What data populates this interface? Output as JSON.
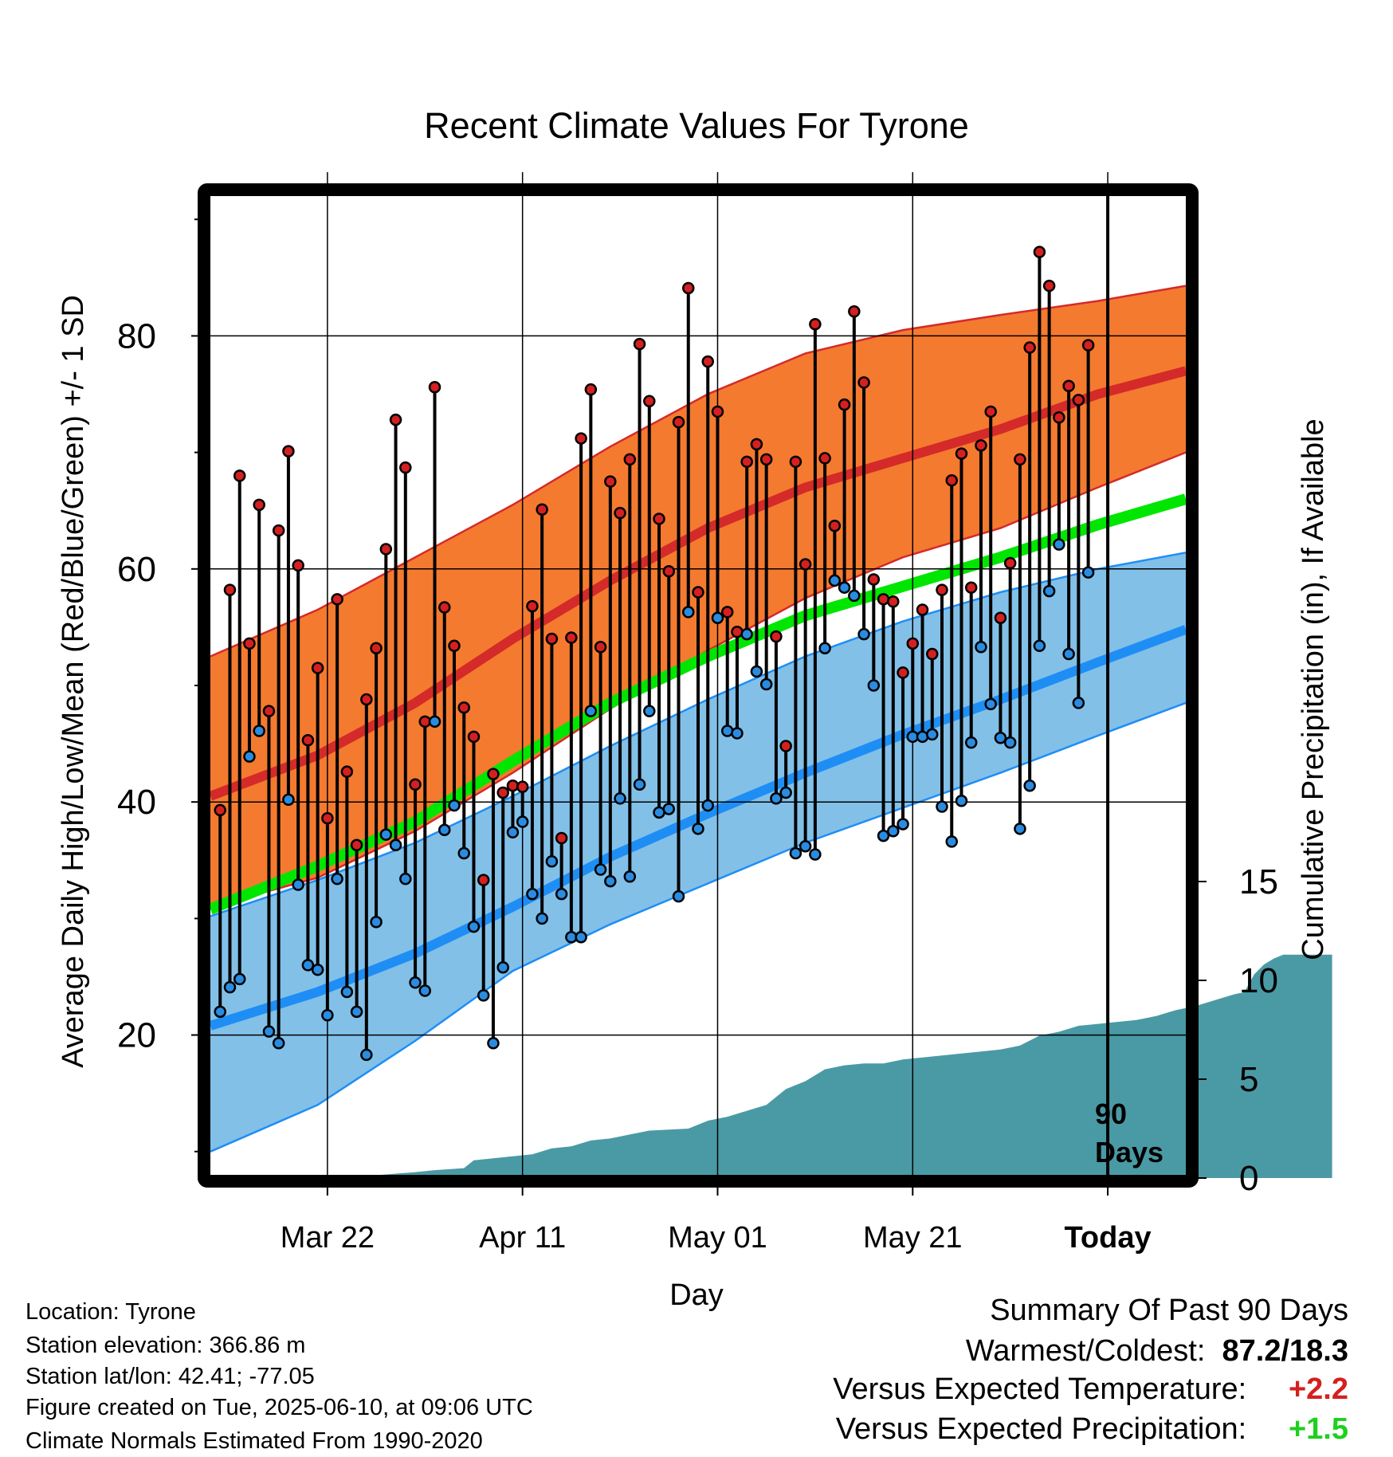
{
  "chart_data": {
    "type": "line",
    "title": "Recent Climate Values For Tyrone",
    "xlabel": "Day",
    "ylabel": "Average Daily High/Low/Mean (Red/Blue/Green) +/- 1 SD",
    "y2label": "Cumulative Precipitation (in), If Available",
    "ylim": [
      8,
      92
    ],
    "y2lim": [
      0,
      17
    ],
    "x_tick_labels": [
      "Mar 22",
      "Apr 11",
      "May 01",
      "May 21",
      "Today"
    ],
    "y_tick_labels": [
      "20",
      "40",
      "60",
      "80"
    ],
    "y2_tick_labels": [
      "0",
      "5",
      "10",
      "15"
    ],
    "today_marker_label": "90 Days",
    "grid": true,
    "colors": {
      "high_band": "#f47a2f",
      "high_mean": "#d42a2a",
      "low_band": "#82c0e8",
      "low_mean": "#1e8ef5",
      "mean": "#00e600",
      "precip": "#4a9aa5",
      "high_dot": "#d42020",
      "low_dot": "#2a8ce0"
    },
    "normal_high_mean": [
      [
        -1,
        40.5
      ],
      [
        10,
        44
      ],
      [
        20,
        48.5
      ],
      [
        30,
        54
      ],
      [
        40,
        59
      ],
      [
        50,
        63.5
      ],
      [
        60,
        67
      ],
      [
        70,
        69.5
      ],
      [
        80,
        72
      ],
      [
        90,
        75
      ],
      [
        99,
        77
      ]
    ],
    "normal_high_upper": [
      [
        -1,
        52.5
      ],
      [
        10,
        56.5
      ],
      [
        20,
        61
      ],
      [
        30,
        65.5
      ],
      [
        40,
        70.5
      ],
      [
        50,
        75
      ],
      [
        60,
        78.5
      ],
      [
        70,
        80.5
      ],
      [
        80,
        81.8
      ],
      [
        90,
        83
      ],
      [
        99,
        84.3
      ]
    ],
    "normal_high_lower": [
      [
        -1,
        31
      ],
      [
        10,
        33.5
      ],
      [
        20,
        37.5
      ],
      [
        30,
        42.5
      ],
      [
        40,
        48
      ],
      [
        50,
        53
      ],
      [
        60,
        57.5
      ],
      [
        70,
        61
      ],
      [
        80,
        63.5
      ],
      [
        90,
        67
      ],
      [
        99,
        70
      ]
    ],
    "normal_mean": [
      [
        -1,
        30.8
      ],
      [
        10,
        34.5
      ],
      [
        20,
        38.3
      ],
      [
        30,
        43.5
      ],
      [
        40,
        48.5
      ],
      [
        50,
        52.5
      ],
      [
        60,
        56
      ],
      [
        70,
        58.5
      ],
      [
        80,
        61
      ],
      [
        90,
        63.8
      ],
      [
        99,
        66
      ]
    ],
    "normal_low_mean": [
      [
        -1,
        20.8
      ],
      [
        10,
        23.7
      ],
      [
        20,
        27
      ],
      [
        30,
        31
      ],
      [
        40,
        35.3
      ],
      [
        50,
        39
      ],
      [
        60,
        42.5
      ],
      [
        70,
        45.8
      ],
      [
        80,
        48.8
      ],
      [
        90,
        52
      ],
      [
        99,
        54.8
      ]
    ],
    "normal_low_upper": [
      [
        -1,
        30.2
      ],
      [
        10,
        33.3
      ],
      [
        20,
        36.5
      ],
      [
        30,
        40.5
      ],
      [
        40,
        44.8
      ],
      [
        50,
        48.8
      ],
      [
        60,
        52.5
      ],
      [
        70,
        55.5
      ],
      [
        80,
        58
      ],
      [
        90,
        60
      ],
      [
        99,
        61.4
      ]
    ],
    "normal_low_lower": [
      [
        -1,
        10
      ],
      [
        10,
        14
      ],
      [
        20,
        19.5
      ],
      [
        30,
        25.5
      ],
      [
        40,
        29.5
      ],
      [
        50,
        33
      ],
      [
        60,
        36.5
      ],
      [
        70,
        39.5
      ],
      [
        80,
        42.5
      ],
      [
        90,
        45.7
      ],
      [
        99,
        48.5
      ]
    ],
    "daily_highs": [
      39.3,
      58.2,
      68,
      53.6,
      65.5,
      47.8,
      63.3,
      70.1,
      60.3,
      45.3,
      51.5,
      38.6,
      57.4,
      42.6,
      36.3,
      48.8,
      53.2,
      61.7,
      72.8,
      68.7,
      41.5,
      46.9,
      75.6,
      56.7,
      53.4,
      48.1,
      45.6,
      33.3,
      42.4,
      40.8,
      41.4,
      41.3,
      56.8,
      65.1,
      54,
      36.9,
      54.1,
      71.2,
      75.4,
      53.3,
      67.5,
      64.8,
      69.4,
      79.3,
      74.4,
      64.3,
      59.8,
      72.6,
      84.1,
      58,
      77.8,
      73.5,
      56.3,
      54.6,
      69.2,
      70.7,
      69.4,
      54.2,
      44.8,
      69.2,
      60.4,
      81,
      69.5,
      63.7,
      74.1,
      82.1,
      76,
      59.1,
      57.4,
      57.2,
      51.1,
      53.6,
      56.5,
      52.7,
      58.2,
      67.6,
      69.9,
      58.4,
      70.6,
      73.5,
      55.8,
      60.5,
      69.4,
      79,
      87.2,
      84.3,
      73,
      75.7,
      74.5,
      79.2
    ],
    "daily_lows": [
      22,
      24.1,
      24.8,
      43.9,
      46.1,
      20.3,
      19.3,
      40.2,
      32.9,
      26,
      25.6,
      21.7,
      33.4,
      23.7,
      22,
      18.3,
      29.7,
      37.2,
      36.3,
      33.4,
      24.5,
      23.8,
      46.9,
      37.6,
      39.7,
      35.6,
      29.3,
      23.4,
      19.3,
      25.8,
      37.4,
      38.3,
      32.1,
      30,
      34.9,
      32.1,
      28.4,
      28.4,
      47.8,
      34.2,
      33.2,
      40.3,
      33.6,
      41.5,
      47.8,
      39.1,
      39.4,
      31.9,
      56.3,
      37.7,
      39.7,
      55.8,
      46.1,
      45.9,
      54.4,
      51.2,
      50.1,
      40.3,
      40.8,
      35.6,
      36.2,
      35.5,
      53.2,
      59,
      58.4,
      57.7,
      54.4,
      50,
      37.1,
      37.5,
      38.1,
      45.6,
      45.6,
      45.8,
      39.6,
      36.6,
      40.1,
      45.1,
      53.3,
      48.4,
      45.5,
      45.1,
      37.7,
      41.4,
      53.4,
      58.1,
      62.1,
      52.7,
      48.5,
      59.7
    ],
    "cumulative_precip": [
      [
        10,
        0
      ],
      [
        15,
        0.1
      ],
      [
        20,
        0.3
      ],
      [
        22,
        0.4
      ],
      [
        25,
        0.5
      ],
      [
        26,
        0.9
      ],
      [
        30,
        1.1
      ],
      [
        32,
        1.2
      ],
      [
        34,
        1.5
      ],
      [
        36,
        1.6
      ],
      [
        38,
        1.9
      ],
      [
        40,
        2
      ],
      [
        42,
        2.2
      ],
      [
        44,
        2.4
      ],
      [
        48,
        2.5
      ],
      [
        50,
        2.9
      ],
      [
        52,
        3.1
      ],
      [
        56,
        3.7
      ],
      [
        58,
        4.5
      ],
      [
        60,
        4.9
      ],
      [
        62,
        5.5
      ],
      [
        64,
        5.7
      ],
      [
        66,
        5.8
      ],
      [
        68,
        5.8
      ],
      [
        70,
        6
      ],
      [
        72,
        6.1
      ],
      [
        74,
        6.2
      ],
      [
        76,
        6.3
      ],
      [
        78,
        6.4
      ],
      [
        80,
        6.5
      ],
      [
        82,
        6.7
      ],
      [
        84,
        7.2
      ],
      [
        86,
        7.4
      ],
      [
        88,
        7.7
      ],
      [
        90,
        7.8
      ],
      [
        92,
        7.9
      ],
      [
        94,
        8
      ],
      [
        96,
        8.2
      ],
      [
        98,
        8.5
      ],
      [
        100,
        8.7
      ],
      [
        102,
        9.0
      ],
      [
        104,
        9.3
      ],
      [
        105,
        9.4
      ],
      [
        106,
        10.3
      ],
      [
        107,
        10.8
      ],
      [
        108,
        11.1
      ],
      [
        109,
        11.3
      ],
      [
        110,
        11.3
      ],
      [
        111,
        11.3
      ],
      [
        112,
        11.3
      ],
      [
        113,
        11.3
      ],
      [
        114,
        11.3
      ]
    ]
  },
  "info": {
    "location": "Location: Tyrone",
    "elevation": "Station elevation: 366.86 m",
    "latlon": "Station lat/lon: 42.41; -77.05",
    "created": "Figure created on Tue, 2025-06-10, at 09:06 UTC",
    "normals": "Climate Normals Estimated From 1990-2020"
  },
  "summary": {
    "heading": "Summary Of Past 90 Days",
    "warm_cold_label": "Warmest/Coldest:",
    "warm_cold_value": "87.2/18.3",
    "temp_label": "Versus Expected Temperature:",
    "temp_value": "+2.2",
    "temp_color": "#d42020",
    "precip_label": "Versus Expected Precipitation:",
    "precip_value": "+1.5",
    "precip_color": "#1ed01e"
  }
}
